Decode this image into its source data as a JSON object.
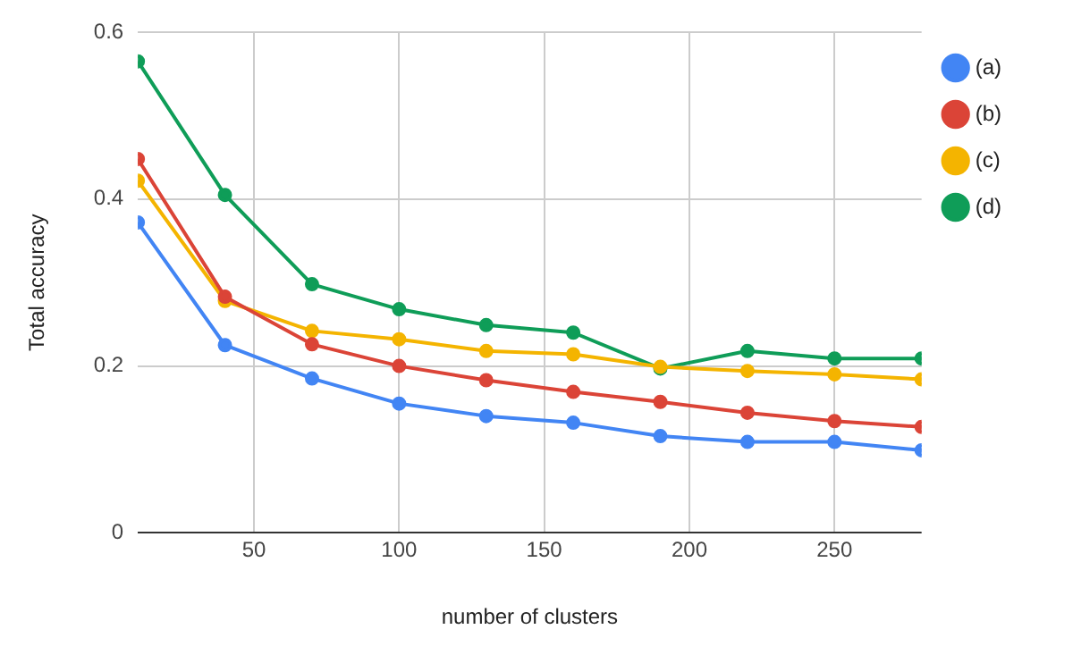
{
  "chart_data": {
    "type": "line",
    "xlabel": "number of clusters",
    "ylabel": "Total accuracy",
    "x": [
      10,
      40,
      70,
      100,
      130,
      160,
      190,
      220,
      250,
      280
    ],
    "series": [
      {
        "name": "(a)",
        "color": "#4285f4",
        "values": [
          0.372,
          0.225,
          0.185,
          0.155,
          0.14,
          0.132,
          0.116,
          0.109,
          0.109,
          0.099
        ]
      },
      {
        "name": "(b)",
        "color": "#db4437",
        "values": [
          0.448,
          0.283,
          0.226,
          0.2,
          0.183,
          0.169,
          0.157,
          0.144,
          0.134,
          0.127
        ]
      },
      {
        "name": "(c)",
        "color": "#f4b400",
        "values": [
          0.422,
          0.278,
          0.242,
          0.232,
          0.218,
          0.214,
          0.199,
          0.194,
          0.19,
          0.184
        ]
      },
      {
        "name": "(d)",
        "color": "#0f9d58",
        "values": [
          0.565,
          0.405,
          0.298,
          0.268,
          0.249,
          0.24,
          0.197,
          0.218,
          0.209,
          0.209
        ]
      }
    ],
    "xlim": [
      10,
      280
    ],
    "xticks": [
      50,
      100,
      150,
      200,
      250
    ],
    "ylim": [
      0,
      0.6
    ],
    "yticks": [
      0,
      0.2,
      0.4,
      0.6
    ],
    "grid": true,
    "legend": "right",
    "marker": "circle",
    "line_style": "solid"
  }
}
